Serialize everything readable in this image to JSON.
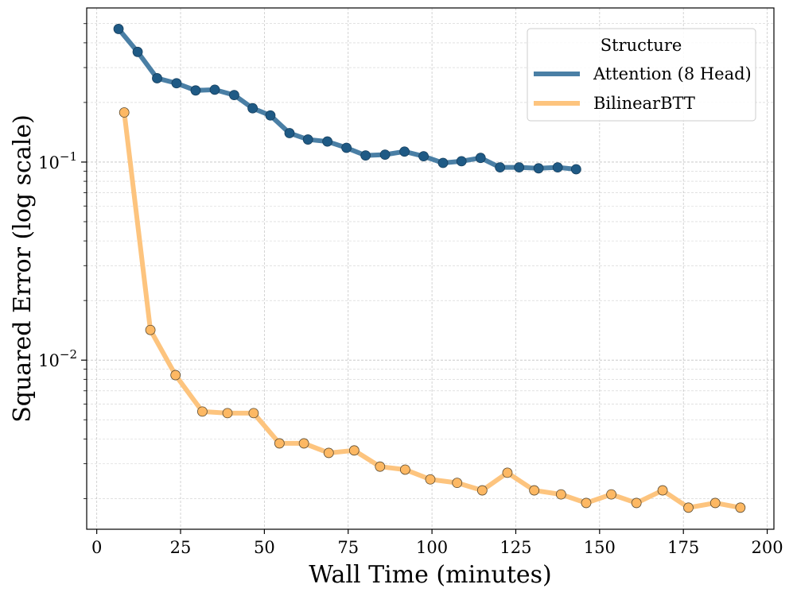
{
  "chart_data": {
    "type": "line",
    "title": "",
    "xlabel": "Wall Time (minutes)",
    "ylabel": "Squared Error (log scale)",
    "yscale": "log",
    "xlim": [
      -3,
      202
    ],
    "ylim": [
      0.0014,
      0.6
    ],
    "xticks": [
      0,
      25,
      50,
      75,
      100,
      125,
      150,
      175,
      200
    ],
    "xtick_labels": [
      "0",
      "25",
      "50",
      "75",
      "100",
      "125",
      "150",
      "175",
      "200"
    ],
    "yticks": [
      0.01,
      0.1
    ],
    "ytick_labels": [
      {
        "base": "10",
        "exp": "−2"
      },
      {
        "base": "10",
        "exp": "−1"
      }
    ],
    "grid": true,
    "legend": {
      "title": "Structure",
      "position": "top-right"
    },
    "series": [
      {
        "name": "Attention (8 Head)",
        "color": "#1f5a85",
        "line_color": "#4a7fa5",
        "x": [
          6.5,
          12.2,
          18.0,
          23.8,
          29.5,
          35.2,
          41.0,
          46.5,
          51.8,
          57.5,
          63.0,
          68.8,
          74.5,
          80.2,
          86.0,
          91.8,
          97.5,
          103.3,
          108.8,
          114.5,
          120.3,
          126.0,
          131.8,
          137.5,
          143.0
        ],
        "y": [
          0.47,
          0.36,
          0.265,
          0.25,
          0.23,
          0.232,
          0.218,
          0.187,
          0.172,
          0.14,
          0.13,
          0.127,
          0.118,
          0.108,
          0.109,
          0.113,
          0.107,
          0.099,
          0.101,
          0.105,
          0.094,
          0.094,
          0.093,
          0.094,
          0.092
        ]
      },
      {
        "name": "BilinearBTT",
        "color": "#fdb863",
        "line_color": "#fdc47e",
        "x": [
          8.2,
          16.0,
          23.5,
          31.5,
          39.0,
          46.8,
          54.5,
          61.8,
          69.2,
          76.8,
          84.5,
          92.0,
          99.5,
          107.5,
          115.0,
          122.5,
          130.5,
          138.5,
          146.0,
          153.5,
          161.0,
          168.8,
          176.5,
          184.5,
          192.0
        ],
        "y": [
          0.178,
          0.0142,
          0.0084,
          0.0055,
          0.0054,
          0.0054,
          0.0038,
          0.0038,
          0.0034,
          0.0035,
          0.0029,
          0.0028,
          0.0025,
          0.0024,
          0.0022,
          0.0027,
          0.0022,
          0.0021,
          0.0019,
          0.0021,
          0.0019,
          0.0022,
          0.0018,
          0.0019,
          0.0018
        ]
      }
    ]
  }
}
